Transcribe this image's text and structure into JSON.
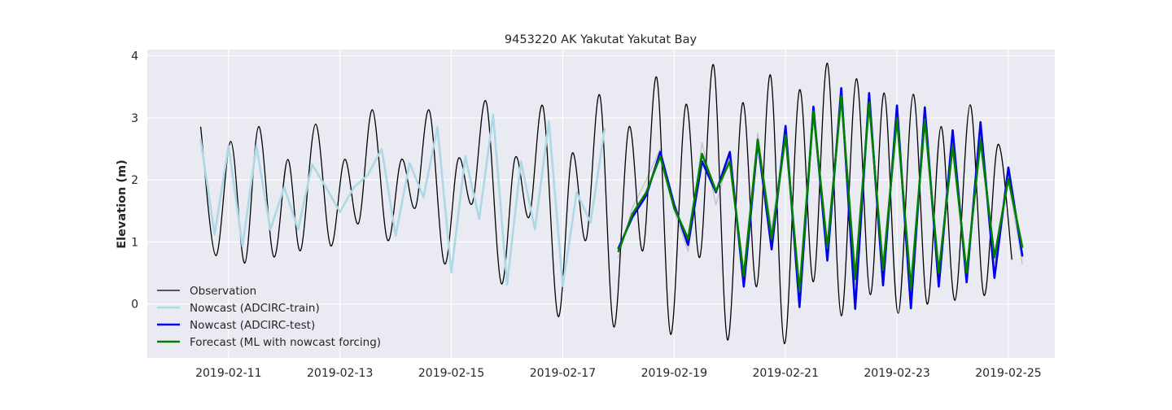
{
  "chart_data": {
    "type": "line",
    "title": "9453220 AK Yakutat Yakutat Bay",
    "xlabel": "",
    "ylabel": "Elevation (m)",
    "x_ticks": [
      "2019-02-11",
      "2019-02-13",
      "2019-02-15",
      "2019-02-17",
      "2019-02-19",
      "2019-02-21",
      "2019-02-23",
      "2019-02-25"
    ],
    "y_ticks": [
      0,
      1,
      2,
      3,
      4
    ],
    "xlim": [
      "2019-02-09T13:00",
      "2019-02-25T20:00"
    ],
    "ylim": [
      -0.87,
      4.1
    ],
    "grid": true,
    "legend_position": "lower-left",
    "background": "#eaeaf2",
    "series": [
      {
        "name": "Observation",
        "color": "#000000",
        "linewidth": 1.3,
        "interp": "smooth",
        "points": [
          [
            "2019-02-10T12:00",
            2.85
          ],
          [
            "2019-02-10T18:30",
            0.78
          ],
          [
            "2019-02-11T01:00",
            2.62
          ],
          [
            "2019-02-11T07:00",
            0.66
          ],
          [
            "2019-02-11T13:00",
            2.86
          ],
          [
            "2019-02-11T19:30",
            0.76
          ],
          [
            "2019-02-12T01:30",
            2.33
          ],
          [
            "2019-02-12T07:00",
            0.86
          ],
          [
            "2019-02-12T13:30",
            2.9
          ],
          [
            "2019-02-12T20:00",
            0.94
          ],
          [
            "2019-02-13T02:00",
            2.33
          ],
          [
            "2019-02-13T08:00",
            1.3
          ],
          [
            "2019-02-13T14:00",
            3.13
          ],
          [
            "2019-02-13T20:30",
            1.03
          ],
          [
            "2019-02-14T02:30",
            2.33
          ],
          [
            "2019-02-14T08:30",
            1.55
          ],
          [
            "2019-02-14T14:30",
            3.12
          ],
          [
            "2019-02-14T21:00",
            0.65
          ],
          [
            "2019-02-15T03:00",
            2.34
          ],
          [
            "2019-02-15T09:00",
            1.62
          ],
          [
            "2019-02-15T15:00",
            3.26
          ],
          [
            "2019-02-15T21:30",
            0.33
          ],
          [
            "2019-02-16T03:30",
            2.36
          ],
          [
            "2019-02-16T09:30",
            1.4
          ],
          [
            "2019-02-16T15:30",
            3.18
          ],
          [
            "2019-02-16T22:00",
            -0.2
          ],
          [
            "2019-02-17T04:00",
            2.42
          ],
          [
            "2019-02-17T10:00",
            1.03
          ],
          [
            "2019-02-17T16:00",
            3.36
          ],
          [
            "2019-02-17T22:00",
            -0.37
          ],
          [
            "2019-02-18T04:30",
            2.85
          ],
          [
            "2019-02-18T10:30",
            0.86
          ],
          [
            "2019-02-18T16:30",
            3.65
          ],
          [
            "2019-02-18T22:30",
            -0.49
          ],
          [
            "2019-02-19T05:00",
            3.21
          ],
          [
            "2019-02-19T11:00",
            0.75
          ],
          [
            "2019-02-19T17:00",
            3.85
          ],
          [
            "2019-02-19T23:00",
            -0.58
          ],
          [
            "2019-02-20T05:30",
            3.24
          ],
          [
            "2019-02-20T11:30",
            0.28
          ],
          [
            "2019-02-20T17:30",
            3.69
          ],
          [
            "2019-02-20T23:30",
            -0.64
          ],
          [
            "2019-02-21T06:00",
            3.45
          ],
          [
            "2019-02-21T12:00",
            0.36
          ],
          [
            "2019-02-21T18:00",
            3.88
          ],
          [
            "2019-02-22T00:00",
            -0.19
          ],
          [
            "2019-02-22T06:30",
            3.63
          ],
          [
            "2019-02-22T12:30",
            0.15
          ],
          [
            "2019-02-22T18:30",
            3.4
          ],
          [
            "2019-02-23T00:30",
            -0.15
          ],
          [
            "2019-02-23T07:00",
            3.38
          ],
          [
            "2019-02-23T13:00",
            0.0
          ],
          [
            "2019-02-23T19:00",
            2.86
          ],
          [
            "2019-02-24T01:00",
            0.06
          ],
          [
            "2019-02-24T07:30",
            3.21
          ],
          [
            "2019-02-24T13:30",
            0.14
          ],
          [
            "2019-02-24T19:30",
            2.57
          ],
          [
            "2019-02-25T01:30",
            0.72
          ]
        ]
      },
      {
        "name": "Nowcast (ADCIRC-train)",
        "color": "#add8e6",
        "linewidth": 2.6,
        "interp": "linear",
        "points": [
          [
            "2019-02-10T12:00",
            2.64
          ],
          [
            "2019-02-10T18:00",
            1.12
          ],
          [
            "2019-02-11T00:00",
            2.55
          ],
          [
            "2019-02-11T06:00",
            0.93
          ],
          [
            "2019-02-11T12:00",
            2.55
          ],
          [
            "2019-02-11T18:00",
            1.2
          ],
          [
            "2019-02-12T00:00",
            1.88
          ],
          [
            "2019-02-12T06:00",
            1.2
          ],
          [
            "2019-02-12T12:00",
            2.25
          ],
          [
            "2019-02-12T18:00",
            1.88
          ],
          [
            "2019-02-13T00:00",
            1.48
          ],
          [
            "2019-02-13T06:00",
            1.88
          ],
          [
            "2019-02-13T12:00",
            2.08
          ],
          [
            "2019-02-13T18:00",
            2.5
          ],
          [
            "2019-02-14T00:00",
            1.1
          ],
          [
            "2019-02-14T06:00",
            2.27
          ],
          [
            "2019-02-14T12:00",
            1.72
          ],
          [
            "2019-02-14T18:00",
            2.85
          ],
          [
            "2019-02-15T00:00",
            0.51
          ],
          [
            "2019-02-15T06:00",
            2.38
          ],
          [
            "2019-02-15T12:00",
            1.37
          ],
          [
            "2019-02-15T18:00",
            3.05
          ],
          [
            "2019-02-16T00:00",
            0.31
          ],
          [
            "2019-02-16T06:00",
            2.3
          ],
          [
            "2019-02-16T12:00",
            1.2
          ],
          [
            "2019-02-16T18:00",
            2.94
          ],
          [
            "2019-02-17T00:00",
            0.29
          ],
          [
            "2019-02-17T06:00",
            1.8
          ],
          [
            "2019-02-17T12:00",
            1.31
          ],
          [
            "2019-02-17T18:00",
            2.82
          ]
        ]
      },
      {
        "name": "Nowcast (ADCIRC-test)",
        "color": "#0000ee",
        "linewidth": 2.6,
        "interp": "linear",
        "points": [
          [
            "2019-02-18T00:00",
            0.9
          ],
          [
            "2019-02-18T06:00",
            1.4
          ],
          [
            "2019-02-18T12:00",
            1.75
          ],
          [
            "2019-02-18T18:00",
            2.45
          ],
          [
            "2019-02-19T00:00",
            1.6
          ],
          [
            "2019-02-19T06:00",
            0.95
          ],
          [
            "2019-02-19T12:00",
            2.3
          ],
          [
            "2019-02-19T18:00",
            1.8
          ],
          [
            "2019-02-20T00:00",
            2.45
          ],
          [
            "2019-02-20T06:00",
            0.28
          ],
          [
            "2019-02-20T12:00",
            2.62
          ],
          [
            "2019-02-20T18:00",
            0.88
          ],
          [
            "2019-02-21T00:00",
            2.87
          ],
          [
            "2019-02-21T06:00",
            -0.05
          ],
          [
            "2019-02-21T12:00",
            3.18
          ],
          [
            "2019-02-21T18:00",
            0.7
          ],
          [
            "2019-02-22T00:00",
            3.48
          ],
          [
            "2019-02-22T06:00",
            -0.08
          ],
          [
            "2019-02-22T12:00",
            3.4
          ],
          [
            "2019-02-22T18:00",
            0.3
          ],
          [
            "2019-02-23T00:00",
            3.2
          ],
          [
            "2019-02-23T06:00",
            -0.07
          ],
          [
            "2019-02-23T12:00",
            3.17
          ],
          [
            "2019-02-23T18:00",
            0.28
          ],
          [
            "2019-02-24T00:00",
            2.8
          ],
          [
            "2019-02-24T06:00",
            0.35
          ],
          [
            "2019-02-24T12:00",
            2.93
          ],
          [
            "2019-02-24T18:00",
            0.42
          ],
          [
            "2019-02-25T00:00",
            2.2
          ],
          [
            "2019-02-25T06:00",
            0.78
          ]
        ]
      },
      {
        "name": "",
        "color": "#c0bfc5",
        "linewidth": 1.3,
        "interp": "linear",
        "points": [
          [
            "2019-02-18T00:00",
            0.75
          ],
          [
            "2019-02-18T06:00",
            1.55
          ],
          [
            "2019-02-18T12:00",
            2.0
          ],
          [
            "2019-02-18T18:00",
            2.5
          ],
          [
            "2019-02-19T00:00",
            1.5
          ],
          [
            "2019-02-19T06:00",
            0.85
          ],
          [
            "2019-02-19T12:00",
            2.6
          ],
          [
            "2019-02-19T18:00",
            1.6
          ],
          [
            "2019-02-20T00:00",
            2.4
          ],
          [
            "2019-02-20T06:00",
            0.4
          ],
          [
            "2019-02-20T12:00",
            2.75
          ],
          [
            "2019-02-20T18:00",
            1.2
          ],
          [
            "2019-02-21T00:00",
            2.8
          ],
          [
            "2019-02-21T06:00",
            0.1
          ],
          [
            "2019-02-21T12:00",
            3.15
          ],
          [
            "2019-02-21T18:00",
            0.9
          ],
          [
            "2019-02-22T00:00",
            3.35
          ],
          [
            "2019-02-22T06:00",
            0.3
          ],
          [
            "2019-02-22T12:00",
            3.25
          ],
          [
            "2019-02-22T18:00",
            0.6
          ],
          [
            "2019-02-23T00:00",
            3.05
          ],
          [
            "2019-02-23T06:00",
            0.2
          ],
          [
            "2019-02-23T12:00",
            3.0
          ],
          [
            "2019-02-23T18:00",
            0.5
          ],
          [
            "2019-02-24T00:00",
            2.6
          ],
          [
            "2019-02-24T06:00",
            0.5
          ],
          [
            "2019-02-24T12:00",
            2.7
          ],
          [
            "2019-02-24T18:00",
            0.65
          ],
          [
            "2019-02-25T00:00",
            2.0
          ],
          [
            "2019-02-25T06:00",
            0.65
          ]
        ]
      },
      {
        "name": "Forecast (ML with nowcast forcing)",
        "color": "#008000",
        "linewidth": 2.6,
        "interp": "linear",
        "points": [
          [
            "2019-02-18T00:00",
            0.85
          ],
          [
            "2019-02-18T06:00",
            1.45
          ],
          [
            "2019-02-18T12:00",
            1.8
          ],
          [
            "2019-02-18T18:00",
            2.38
          ],
          [
            "2019-02-19T00:00",
            1.55
          ],
          [
            "2019-02-19T06:00",
            1.05
          ],
          [
            "2019-02-19T12:00",
            2.42
          ],
          [
            "2019-02-19T18:00",
            1.82
          ],
          [
            "2019-02-20T00:00",
            2.3
          ],
          [
            "2019-02-20T06:00",
            0.45
          ],
          [
            "2019-02-20T12:00",
            2.65
          ],
          [
            "2019-02-20T18:00",
            1.05
          ],
          [
            "2019-02-21T00:00",
            2.72
          ],
          [
            "2019-02-21T06:00",
            0.2
          ],
          [
            "2019-02-21T12:00",
            3.1
          ],
          [
            "2019-02-21T18:00",
            0.9
          ],
          [
            "2019-02-22T00:00",
            3.35
          ],
          [
            "2019-02-22T06:00",
            0.4
          ],
          [
            "2019-02-22T12:00",
            3.25
          ],
          [
            "2019-02-22T18:00",
            0.55
          ],
          [
            "2019-02-23T00:00",
            3.0
          ],
          [
            "2019-02-23T06:00",
            0.25
          ],
          [
            "2019-02-23T12:00",
            2.98
          ],
          [
            "2019-02-23T18:00",
            0.5
          ],
          [
            "2019-02-24T00:00",
            2.55
          ],
          [
            "2019-02-24T06:00",
            0.5
          ],
          [
            "2019-02-24T12:00",
            2.65
          ],
          [
            "2019-02-24T18:00",
            0.75
          ],
          [
            "2019-02-25T00:00",
            2.02
          ],
          [
            "2019-02-25T06:00",
            0.92
          ]
        ]
      }
    ]
  }
}
